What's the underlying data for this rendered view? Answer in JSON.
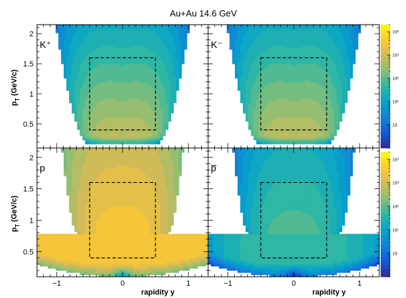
{
  "chart_data": {
    "type": "heatmap",
    "title": "Au+Au 14.6 GeV",
    "xlabel": "rapidity y",
    "ylabel": "p_T (GeV/c)",
    "xlim": [
      -1.3,
      1.3
    ],
    "ylim": [
      0.1,
      2.1
    ],
    "x_ticks": [
      "−1",
      "0",
      "1"
    ],
    "y_ticks": [
      "0.5",
      "1",
      "1.5",
      "2"
    ],
    "colorbar": {
      "scale": "log",
      "range": [
        1,
        200000
      ],
      "tick_labels": [
        "10",
        "10²",
        "10³",
        "10⁴",
        "10⁵"
      ]
    },
    "acceptance_box": {
      "y": [
        -0.5,
        0.5
      ],
      "pT": [
        0.4,
        1.6
      ]
    },
    "panels": [
      {
        "label": "K⁺",
        "species": "kaon-plus"
      },
      {
        "label": "K⁻",
        "species": "kaon-minus"
      },
      {
        "label": "p",
        "species": "proton"
      },
      {
        "label": "p̅",
        "species": "antiproton"
      }
    ]
  },
  "colors": {
    "palette": [
      "#352a87",
      "#0f5cdd",
      "#1481d6",
      "#06a4ca",
      "#2eb7a4",
      "#87bf77",
      "#d1bb59",
      "#fec832",
      "#f9fb0e"
    ]
  }
}
